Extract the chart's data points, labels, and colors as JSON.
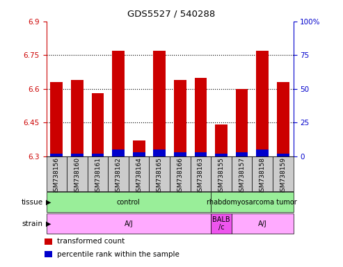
{
  "title": "GDS5527 / 540288",
  "samples": [
    "GSM738156",
    "GSM738160",
    "GSM738161",
    "GSM738162",
    "GSM738164",
    "GSM738165",
    "GSM738166",
    "GSM738163",
    "GSM738155",
    "GSM738157",
    "GSM738158",
    "GSM738159"
  ],
  "transformed_counts": [
    6.63,
    6.64,
    6.58,
    6.77,
    6.37,
    6.77,
    6.64,
    6.65,
    6.44,
    6.6,
    6.77,
    6.63
  ],
  "percentile_ranks": [
    2,
    2,
    2,
    5,
    3,
    5,
    3,
    3,
    2,
    3,
    5,
    2
  ],
  "ylim_left": [
    6.3,
    6.9
  ],
  "ylim_right": [
    0,
    100
  ],
  "yticks_left": [
    6.3,
    6.45,
    6.6,
    6.75,
    6.9
  ],
  "yticks_right": [
    0,
    25,
    50,
    75,
    100
  ],
  "ytick_labels_left": [
    "6.3",
    "6.45",
    "6.6",
    "6.75",
    "6.9"
  ],
  "ytick_labels_right": [
    "0",
    "25",
    "50",
    "75",
    "100%"
  ],
  "hlines": [
    6.45,
    6.6,
    6.75
  ],
  "bar_bottom": 6.3,
  "bar_color_red": "#cc0000",
  "bar_color_blue": "#0000cc",
  "xlabel_color_left": "#cc0000",
  "xlabel_color_right": "#0000cc",
  "bar_width": 0.6,
  "tick_area_bg": "#cccccc",
  "tissue_control_color": "#99ee99",
  "tissue_tumor_color": "#99ee99",
  "strain_aj_color": "#ffaaff",
  "strain_balb_color": "#ee55ee",
  "legend_items": [
    {
      "color": "#cc0000",
      "label": "transformed count"
    },
    {
      "color": "#0000cc",
      "label": "percentile rank within the sample"
    }
  ]
}
